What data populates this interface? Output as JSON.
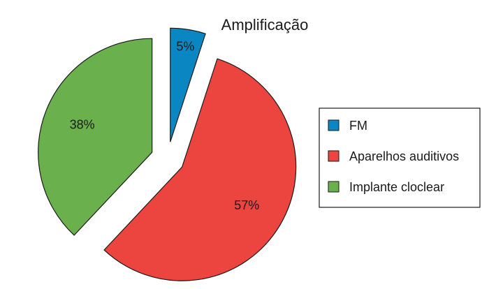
{
  "chart_data": {
    "type": "pie",
    "title": "Amplificação",
    "slices": [
      {
        "label": "FM",
        "value": 5,
        "percent_label": "5%",
        "color": "#0a86c2"
      },
      {
        "label": "Aparelhos auditivos",
        "value": 57,
        "percent_label": "57%",
        "color": "#ec4540"
      },
      {
        "label": "Implante cloclear",
        "value": 38,
        "percent_label": "38%",
        "color": "#6ab04c"
      }
    ],
    "start_angle_deg": 0,
    "direction": "clockwise",
    "exploded": true,
    "legend_placement": "right"
  }
}
